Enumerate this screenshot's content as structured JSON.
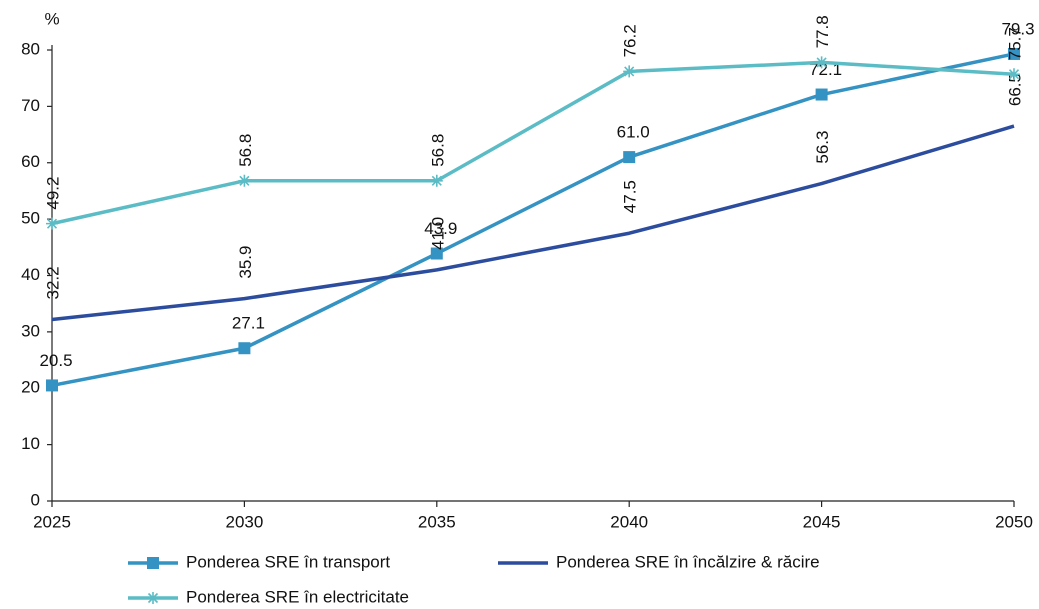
{
  "chart_data": {
    "type": "line",
    "y_label": "%",
    "x": [
      2025,
      2030,
      2035,
      2040,
      2045,
      2050
    ],
    "xlim": [
      2025,
      2050
    ],
    "xticks": [
      2025,
      2030,
      2035,
      2040,
      2045,
      2050
    ],
    "ylim": [
      0,
      80
    ],
    "yticks": [
      0,
      10,
      20,
      30,
      40,
      50,
      60,
      70,
      80
    ],
    "grid": false,
    "legend": "bottom",
    "series": [
      {
        "name": "Ponderea SRE în transport",
        "color": "#3493c2",
        "marker": "square",
        "values": [
          20.5,
          27.1,
          43.9,
          61.0,
          72.1,
          79.3
        ],
        "value_labels": [
          "20.5",
          "27.1",
          "43.9",
          "61.0",
          "72.1",
          "79.3"
        ]
      },
      {
        "name": "Ponderea SRE în încălzire & răcire",
        "color": "#2c4c9e",
        "marker": "none",
        "values": [
          32.2,
          35.9,
          41.0,
          47.5,
          56.3,
          66.5
        ],
        "value_labels": [
          "32.2",
          "35.9",
          "41.0",
          "47.5",
          "56.3",
          "66.5"
        ]
      },
      {
        "name": "Ponderea SRE în electricitate",
        "color": "#5bbcc6",
        "marker": "star",
        "values": [
          49.2,
          56.8,
          56.8,
          76.2,
          77.8,
          75.7
        ],
        "value_labels": [
          "49.2",
          "56.8",
          "56.8",
          "76.2",
          "77.8",
          "75.7"
        ]
      }
    ]
  }
}
